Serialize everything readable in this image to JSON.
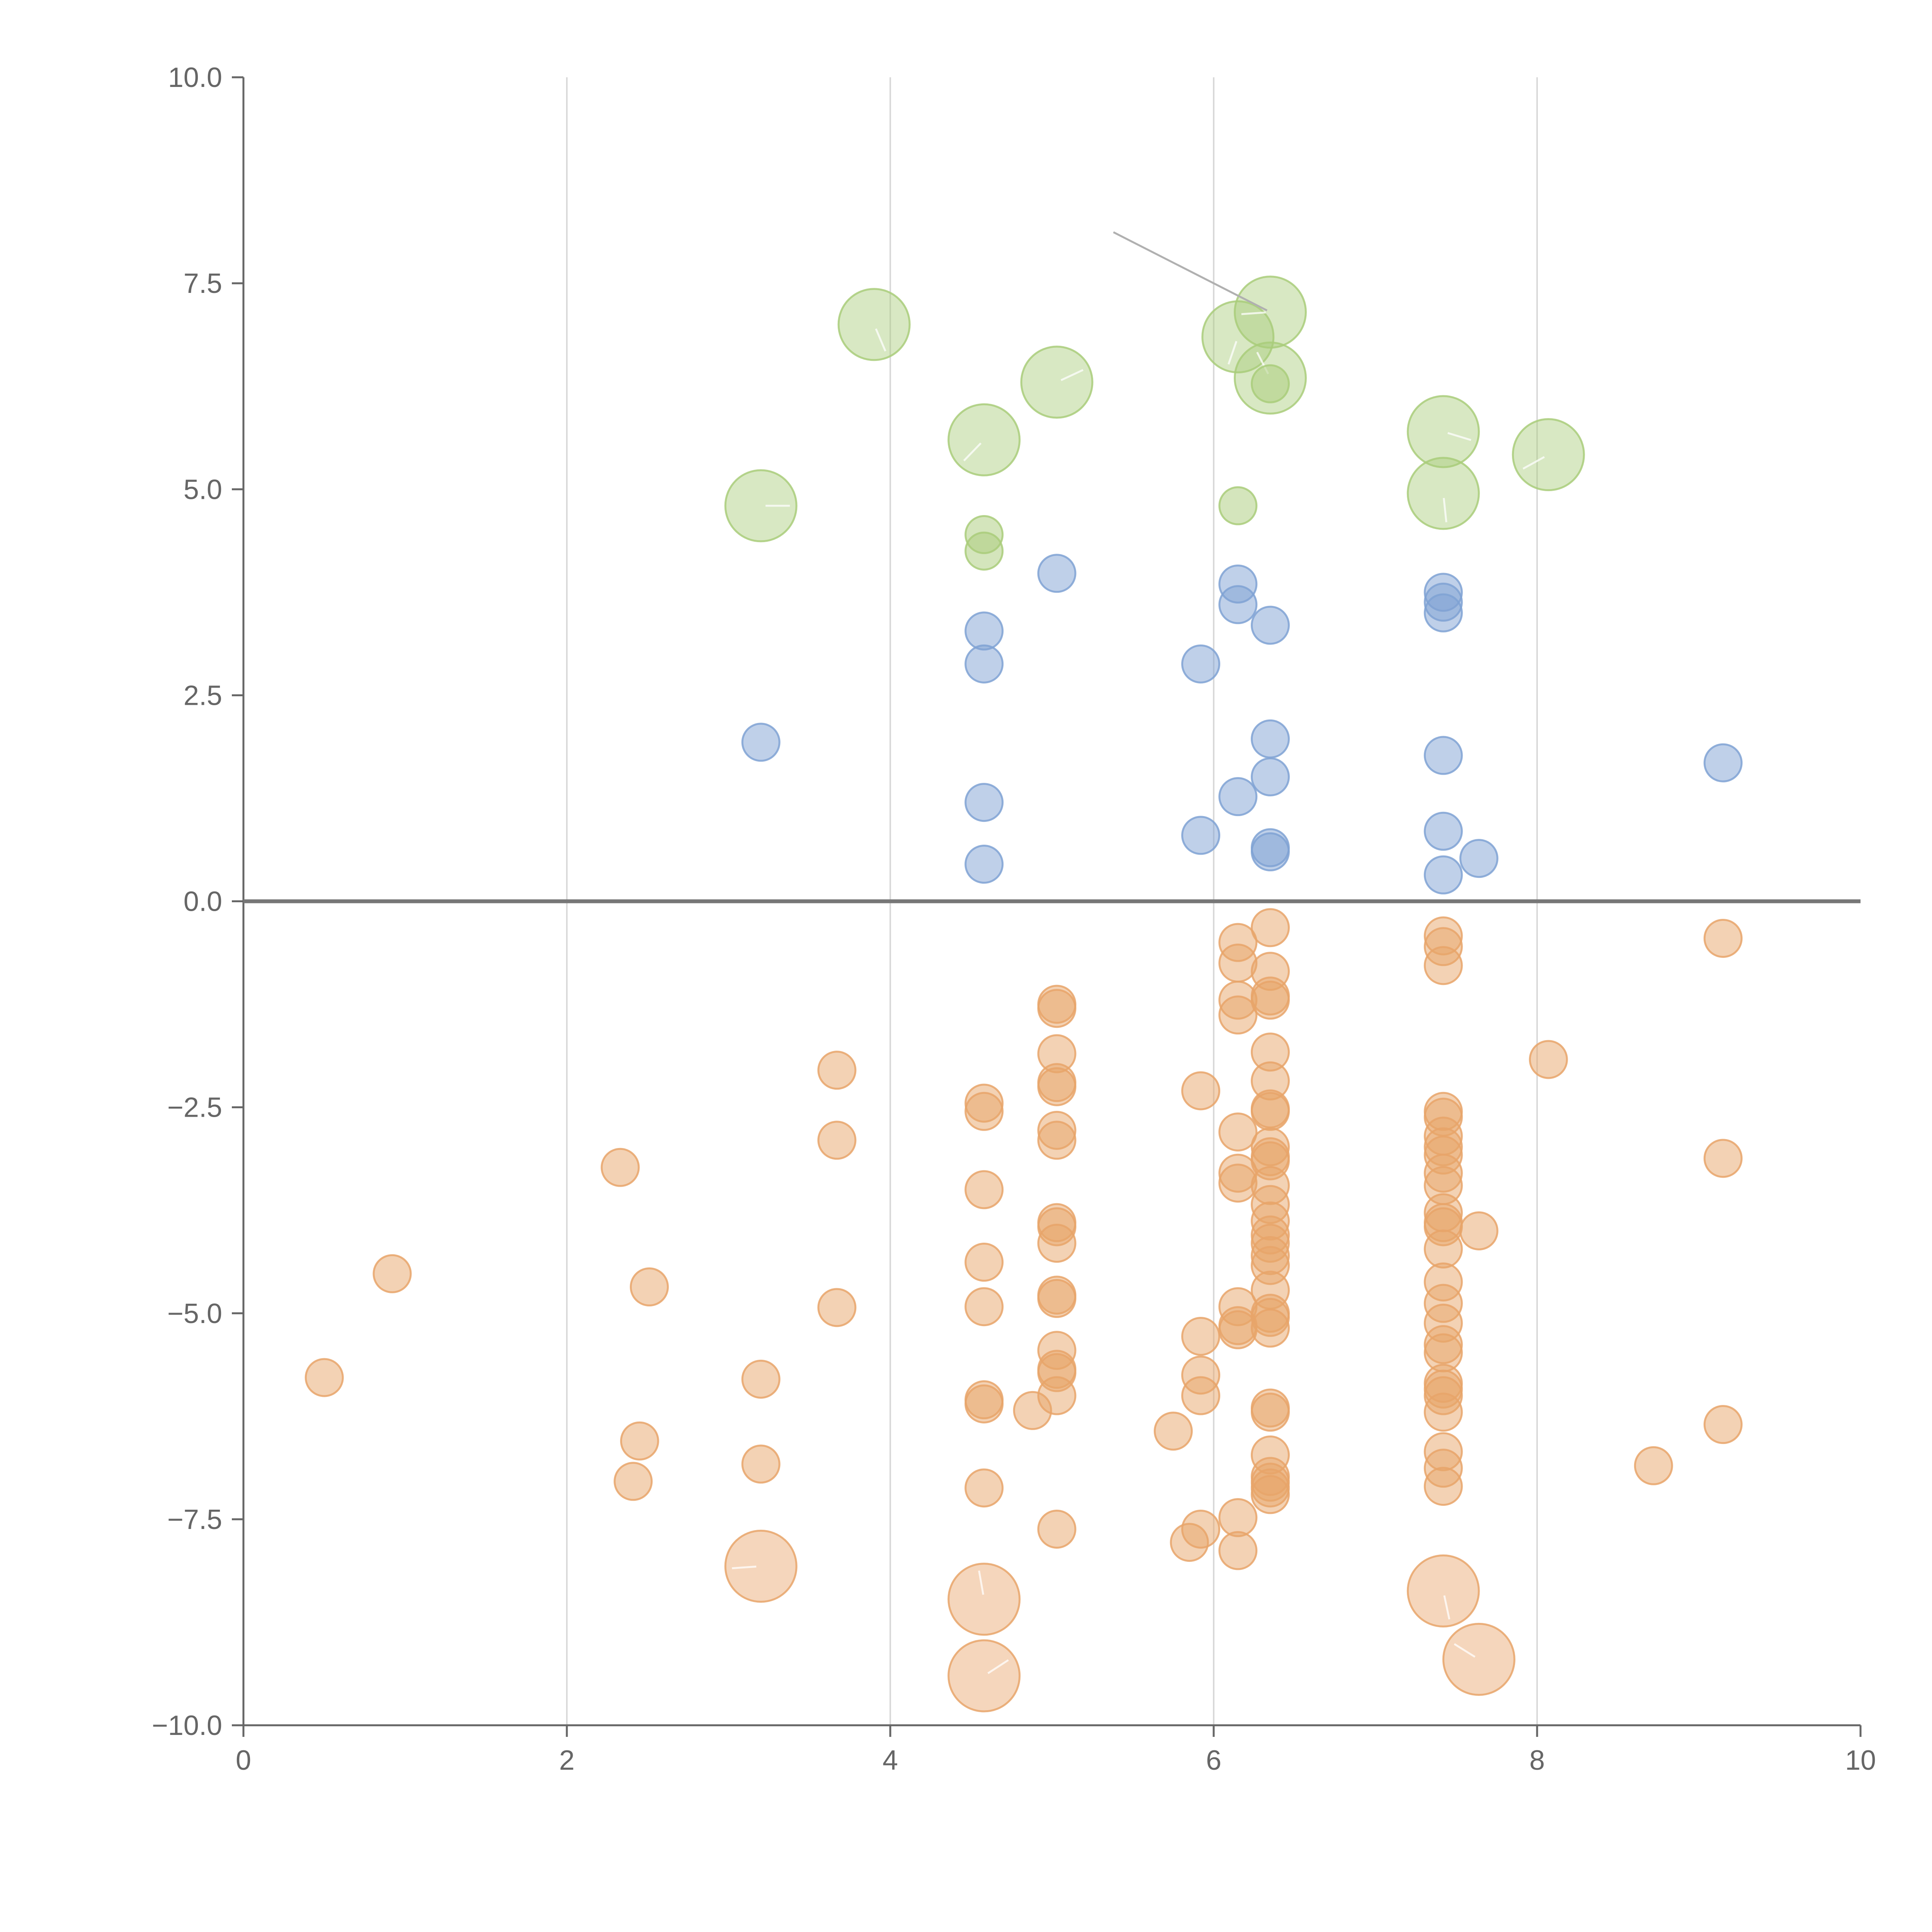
{
  "chart_data": {
    "type": "scatter",
    "title": "",
    "xlabel": "",
    "ylabel": "",
    "xlim": [
      0,
      10
    ],
    "ylim": [
      -10,
      10
    ],
    "grid": "vertical",
    "x_ticks": [
      "0",
      "2",
      "4",
      "6",
      "8",
      "10"
    ],
    "y_ticks": [
      "10.0",
      "7.5",
      "5.0",
      "2.5",
      "0.0",
      "−2.5",
      "−5.0",
      "−7.5",
      "−10.0"
    ],
    "x_tick_values": [
      0,
      2,
      4,
      6,
      8,
      10
    ],
    "y_tick_values": [
      10,
      7.5,
      5,
      2.5,
      0,
      -2.5,
      -5,
      -7.5,
      -10
    ],
    "series": [
      {
        "name": "green",
        "color": "#a9cc7a",
        "points": [
          {
            "x": 3.2,
            "y": 4.8,
            "size": "large"
          },
          {
            "x": 3.9,
            "y": 7.0,
            "size": "large"
          },
          {
            "x": 4.58,
            "y": 5.6,
            "size": "large"
          },
          {
            "x": 4.58,
            "y": 4.45,
            "size": "small"
          },
          {
            "x": 4.58,
            "y": 4.25,
            "size": "small"
          },
          {
            "x": 5.03,
            "y": 6.3,
            "size": "large"
          },
          {
            "x": 6.15,
            "y": 4.8,
            "size": "small"
          },
          {
            "x": 6.15,
            "y": 6.85,
            "size": "large"
          },
          {
            "x": 6.35,
            "y": 7.15,
            "size": "large"
          },
          {
            "x": 6.35,
            "y": 6.35,
            "size": "large"
          },
          {
            "x": 6.35,
            "y": 6.28,
            "size": "small"
          },
          {
            "x": 7.42,
            "y": 5.7,
            "size": "large"
          },
          {
            "x": 7.42,
            "y": 4.95,
            "size": "large"
          },
          {
            "x": 8.07,
            "y": 5.42,
            "size": "large"
          }
        ]
      },
      {
        "name": "blue",
        "color": "#7fa2d4",
        "points": [
          {
            "x": 3.2,
            "y": 1.93
          },
          {
            "x": 4.58,
            "y": 3.28
          },
          {
            "x": 4.58,
            "y": 2.88
          },
          {
            "x": 4.58,
            "y": 1.2
          },
          {
            "x": 4.58,
            "y": 0.45
          },
          {
            "x": 5.03,
            "y": 3.98
          },
          {
            "x": 5.92,
            "y": 2.88
          },
          {
            "x": 5.92,
            "y": 0.8
          },
          {
            "x": 6.15,
            "y": 3.85
          },
          {
            "x": 6.15,
            "y": 3.6
          },
          {
            "x": 6.15,
            "y": 1.27
          },
          {
            "x": 6.35,
            "y": 3.35
          },
          {
            "x": 6.35,
            "y": 1.97
          },
          {
            "x": 6.35,
            "y": 1.51
          },
          {
            "x": 6.35,
            "y": 0.65
          },
          {
            "x": 6.35,
            "y": 0.6
          },
          {
            "x": 7.42,
            "y": 3.75
          },
          {
            "x": 7.42,
            "y": 3.63
          },
          {
            "x": 7.42,
            "y": 3.5
          },
          {
            "x": 7.42,
            "y": 1.77
          },
          {
            "x": 7.42,
            "y": 0.85
          },
          {
            "x": 7.42,
            "y": 0.32
          },
          {
            "x": 7.64,
            "y": 0.52
          },
          {
            "x": 9.15,
            "y": 1.68
          }
        ]
      },
      {
        "name": "orange",
        "color": "#e8a56a",
        "points": [
          {
            "x": 0.5,
            "y": -5.78
          },
          {
            "x": 0.92,
            "y": -4.52
          },
          {
            "x": 2.33,
            "y": -3.23
          },
          {
            "x": 2.41,
            "y": -7.04
          },
          {
            "x": 2.45,
            "y": -6.55
          },
          {
            "x": 2.51,
            "y": -4.68
          },
          {
            "x": 3.2,
            "y": -5.8
          },
          {
            "x": 3.2,
            "y": -6.83
          },
          {
            "x": 3.2,
            "y": -8.07,
            "size": "large"
          },
          {
            "x": 3.67,
            "y": -2.05
          },
          {
            "x": 3.67,
            "y": -2.9
          },
          {
            "x": 3.67,
            "y": -4.93
          },
          {
            "x": 4.58,
            "y": -2.45
          },
          {
            "x": 4.58,
            "y": -2.55
          },
          {
            "x": 4.58,
            "y": -3.5
          },
          {
            "x": 4.58,
            "y": -4.38
          },
          {
            "x": 4.58,
            "y": -4.92
          },
          {
            "x": 4.58,
            "y": -6.05
          },
          {
            "x": 4.58,
            "y": -6.1
          },
          {
            "x": 4.58,
            "y": -7.12
          },
          {
            "x": 4.58,
            "y": -8.47,
            "size": "large"
          },
          {
            "x": 4.58,
            "y": -9.4,
            "size": "large"
          },
          {
            "x": 4.88,
            "y": -6.18
          },
          {
            "x": 5.03,
            "y": -1.25
          },
          {
            "x": 5.03,
            "y": -1.3
          },
          {
            "x": 5.03,
            "y": -1.85
          },
          {
            "x": 5.03,
            "y": -2.2
          },
          {
            "x": 5.03,
            "y": -2.25
          },
          {
            "x": 5.03,
            "y": -2.78
          },
          {
            "x": 5.03,
            "y": -2.9
          },
          {
            "x": 5.03,
            "y": -3.9
          },
          {
            "x": 5.03,
            "y": -3.95
          },
          {
            "x": 5.03,
            "y": -4.15
          },
          {
            "x": 5.03,
            "y": -4.78
          },
          {
            "x": 5.03,
            "y": -4.82
          },
          {
            "x": 5.03,
            "y": -5.45
          },
          {
            "x": 5.03,
            "y": -5.68
          },
          {
            "x": 5.03,
            "y": -5.72
          },
          {
            "x": 5.03,
            "y": -6.0
          },
          {
            "x": 5.03,
            "y": -7.62
          },
          {
            "x": 5.75,
            "y": -6.43
          },
          {
            "x": 5.85,
            "y": -7.78
          },
          {
            "x": 5.92,
            "y": -2.3
          },
          {
            "x": 5.92,
            "y": -5.28
          },
          {
            "x": 5.92,
            "y": -5.75
          },
          {
            "x": 5.92,
            "y": -6.0
          },
          {
            "x": 5.92,
            "y": -7.62
          },
          {
            "x": 6.15,
            "y": -0.5
          },
          {
            "x": 6.15,
            "y": -0.75
          },
          {
            "x": 6.15,
            "y": -1.2
          },
          {
            "x": 6.15,
            "y": -1.38
          },
          {
            "x": 6.15,
            "y": -2.8
          },
          {
            "x": 6.15,
            "y": -3.3
          },
          {
            "x": 6.15,
            "y": -3.42
          },
          {
            "x": 6.15,
            "y": -4.92
          },
          {
            "x": 6.15,
            "y": -5.15
          },
          {
            "x": 6.15,
            "y": -5.2
          },
          {
            "x": 6.15,
            "y": -7.48
          },
          {
            "x": 6.15,
            "y": -7.88
          },
          {
            "x": 6.35,
            "y": -0.32
          },
          {
            "x": 6.35,
            "y": -0.85
          },
          {
            "x": 6.35,
            "y": -1.15
          },
          {
            "x": 6.35,
            "y": -1.2
          },
          {
            "x": 6.35,
            "y": -1.83
          },
          {
            "x": 6.35,
            "y": -2.18
          },
          {
            "x": 6.35,
            "y": -2.52
          },
          {
            "x": 6.35,
            "y": -2.55
          },
          {
            "x": 6.35,
            "y": -2.98
          },
          {
            "x": 6.35,
            "y": -3.1
          },
          {
            "x": 6.35,
            "y": -3.15
          },
          {
            "x": 6.35,
            "y": -3.45
          },
          {
            "x": 6.35,
            "y": -3.68
          },
          {
            "x": 6.35,
            "y": -3.88
          },
          {
            "x": 6.35,
            "y": -4.05
          },
          {
            "x": 6.35,
            "y": -4.15
          },
          {
            "x": 6.35,
            "y": -4.3
          },
          {
            "x": 6.35,
            "y": -4.42
          },
          {
            "x": 6.35,
            "y": -4.72
          },
          {
            "x": 6.35,
            "y": -5.0
          },
          {
            "x": 6.35,
            "y": -5.05
          },
          {
            "x": 6.35,
            "y": -5.18
          },
          {
            "x": 6.35,
            "y": -6.15
          },
          {
            "x": 6.35,
            "y": -6.2
          },
          {
            "x": 6.35,
            "y": -6.72
          },
          {
            "x": 6.35,
            "y": -6.98
          },
          {
            "x": 6.35,
            "y": -7.05
          },
          {
            "x": 6.35,
            "y": -7.12
          },
          {
            "x": 6.35,
            "y": -7.2
          },
          {
            "x": 7.42,
            "y": -0.42
          },
          {
            "x": 7.42,
            "y": -0.55
          },
          {
            "x": 7.42,
            "y": -0.78
          },
          {
            "x": 7.42,
            "y": -2.55
          },
          {
            "x": 7.42,
            "y": -2.62
          },
          {
            "x": 7.42,
            "y": -2.85
          },
          {
            "x": 7.42,
            "y": -2.98
          },
          {
            "x": 7.42,
            "y": -3.08
          },
          {
            "x": 7.42,
            "y": -3.3
          },
          {
            "x": 7.42,
            "y": -3.45
          },
          {
            "x": 7.42,
            "y": -3.78
          },
          {
            "x": 7.42,
            "y": -3.9
          },
          {
            "x": 7.42,
            "y": -3.95
          },
          {
            "x": 7.42,
            "y": -4.22
          },
          {
            "x": 7.42,
            "y": -4.62
          },
          {
            "x": 7.42,
            "y": -4.88
          },
          {
            "x": 7.42,
            "y": -5.12
          },
          {
            "x": 7.42,
            "y": -5.38
          },
          {
            "x": 7.42,
            "y": -5.48
          },
          {
            "x": 7.42,
            "y": -5.85
          },
          {
            "x": 7.42,
            "y": -5.92
          },
          {
            "x": 7.42,
            "y": -6.0
          },
          {
            "x": 7.42,
            "y": -6.2
          },
          {
            "x": 7.42,
            "y": -6.68
          },
          {
            "x": 7.42,
            "y": -6.88
          },
          {
            "x": 7.42,
            "y": -7.1
          },
          {
            "x": 7.42,
            "y": -8.37,
            "size": "large"
          },
          {
            "x": 7.64,
            "y": -4.0
          },
          {
            "x": 7.64,
            "y": -9.2,
            "size": "large"
          },
          {
            "x": 8.07,
            "y": -1.92
          },
          {
            "x": 8.72,
            "y": -6.85
          },
          {
            "x": 9.15,
            "y": -0.45
          },
          {
            "x": 9.15,
            "y": -3.12
          },
          {
            "x": 9.15,
            "y": -6.35
          }
        ]
      }
    ],
    "annotation": {
      "from": {
        "x": 5.38,
        "y": 8.12
      },
      "to": {
        "x": 6.33,
        "y": 7.17
      }
    }
  }
}
